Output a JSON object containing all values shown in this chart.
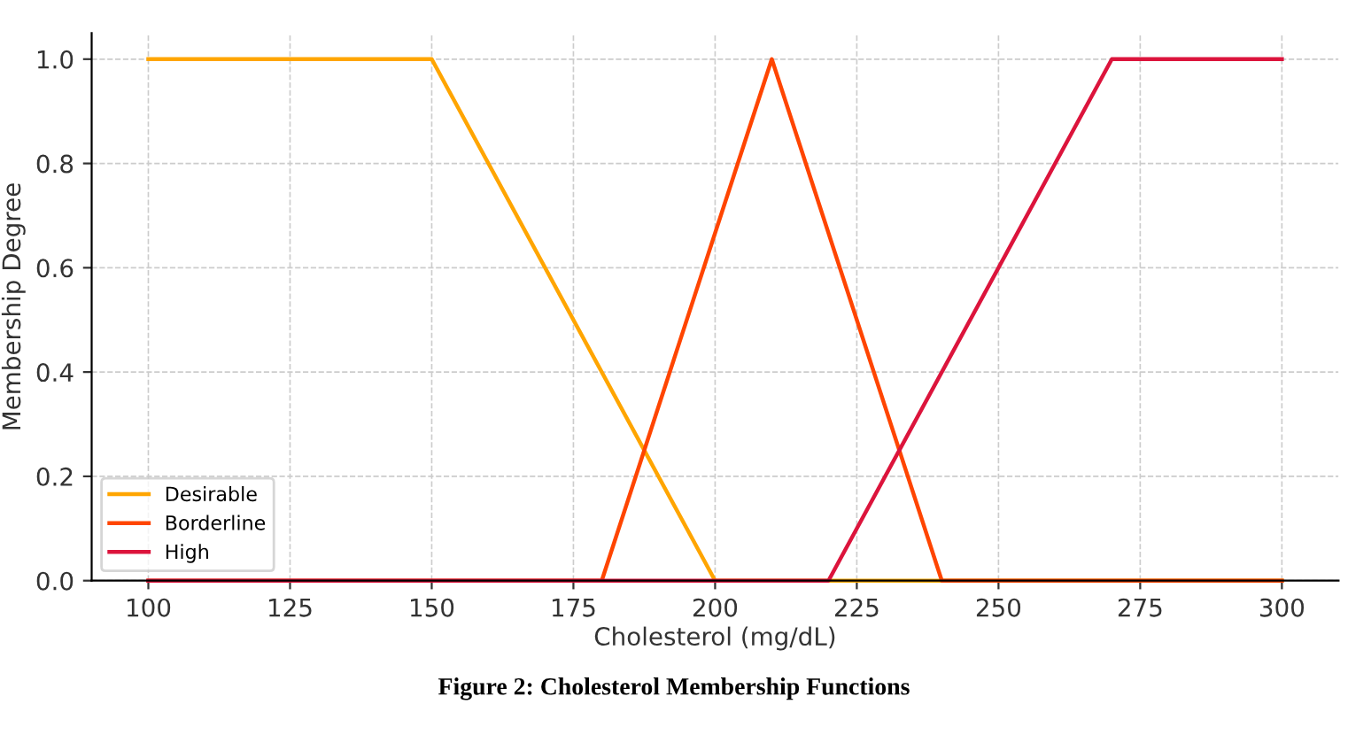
{
  "chart_data": {
    "type": "line",
    "xlabel": "Cholesterol (mg/dL)",
    "ylabel": "Membership Degree",
    "annotations": [
      "Figure 2: Cholesterol Membership Functions"
    ],
    "series": [
      {
        "name": "Desirable",
        "color": "#ffa500",
        "x": [
          100,
          150,
          200,
          300
        ],
        "values": [
          1,
          1,
          0,
          0
        ]
      },
      {
        "name": "Borderline",
        "color": "#ff4500",
        "x": [
          100,
          180,
          210,
          240,
          300
        ],
        "values": [
          0,
          0,
          1,
          0,
          0
        ]
      },
      {
        "name": "High",
        "color": "#dc143c",
        "x": [
          100,
          220,
          270,
          300
        ],
        "values": [
          0,
          0,
          1,
          1
        ]
      }
    ],
    "xlim": [
      90,
      310
    ],
    "ylim": [
      0,
      1.05
    ],
    "xticks": [
      100,
      125,
      150,
      175,
      200,
      225,
      250,
      275,
      300
    ],
    "yticks": [
      {
        "value": 0,
        "label": "0.0"
      },
      {
        "value": 0.2,
        "label": "0.2"
      },
      {
        "value": 0.4,
        "label": "0.4"
      },
      {
        "value": 0.6,
        "label": "0.6"
      },
      {
        "value": 0.8,
        "label": "0.8"
      },
      {
        "value": 1,
        "label": "1.0"
      }
    ],
    "grid": true,
    "legend": "bottom left",
    "marker": "none",
    "line_style": "solid"
  }
}
